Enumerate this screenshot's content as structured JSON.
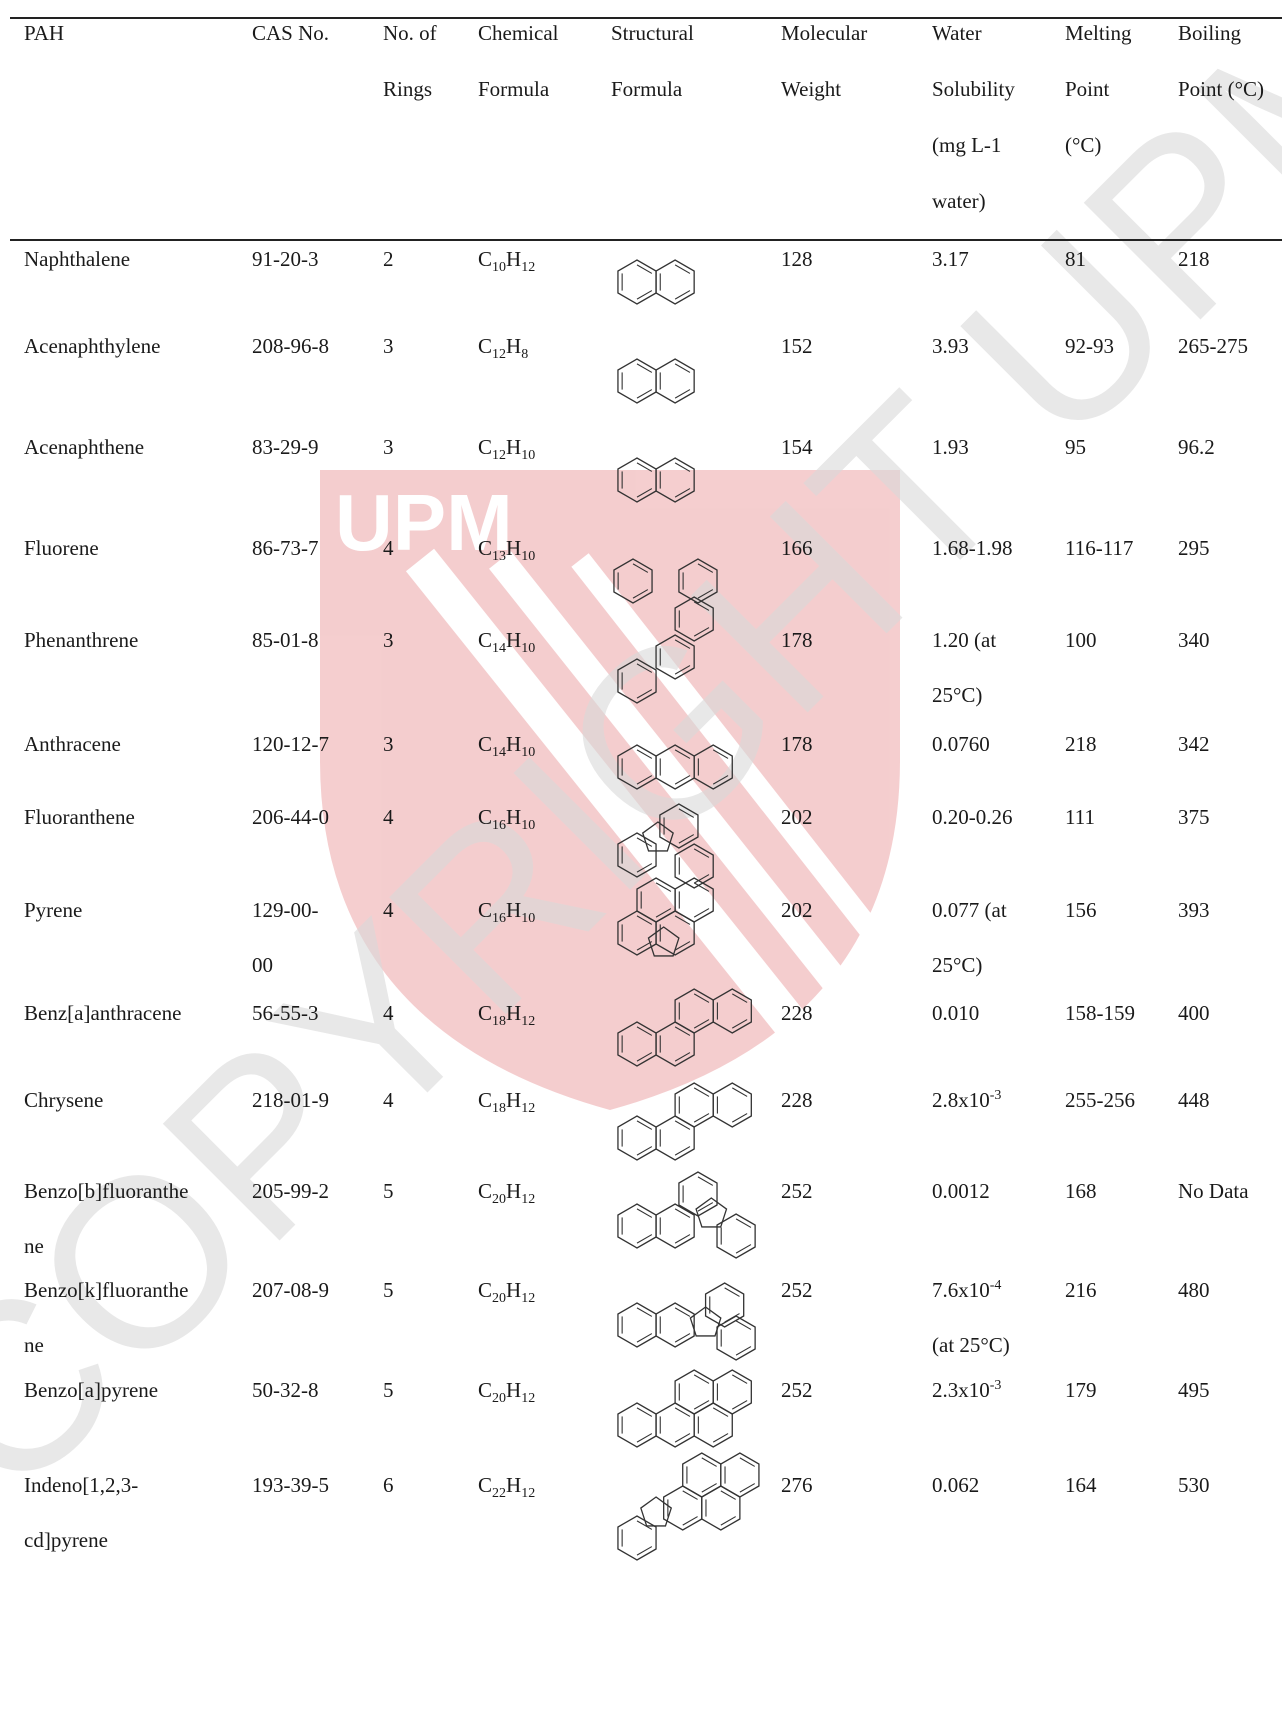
{
  "headers": [
    "PAH",
    "CAS No.",
    "No. of\nRings",
    "Chemical\nFormula",
    "Structural\nFormula",
    "Molecular\nWeight",
    "Water\nSolubility\n(mg L-1\nwater)",
    "Melting\nPoint\n(°C)",
    "Boiling\nPoint (°C)"
  ],
  "rows": [
    {
      "pah": "Naphthalene",
      "cas": "91-20-3",
      "rings": "2",
      "formula": "C10H12",
      "f": [
        [
          "C",
          ""
        ],
        [
          "10",
          "sub"
        ],
        [
          "H",
          ""
        ],
        [
          "12",
          "sub"
        ]
      ],
      "structure": "naphthalene-structure",
      "mw": "128",
      "ws": "3.17",
      "mp": "81",
      "bp": "218"
    },
    {
      "pah": "Acenaphthylene",
      "cas": "208-96-8",
      "rings": "3",
      "formula": "C12H8",
      "f": [
        [
          "C",
          ""
        ],
        [
          "12",
          "sub"
        ],
        [
          "H",
          ""
        ],
        [
          "8",
          "sub"
        ]
      ],
      "structure": "acenaphthylene-structure",
      "mw": "152",
      "ws": "3.93",
      "mp": "92-93",
      "bp": "265-275"
    },
    {
      "pah": "Acenaphthene",
      "cas": "83-29-9",
      "rings": "3",
      "formula": "C12H10",
      "f": [
        [
          "C",
          ""
        ],
        [
          "12",
          "sub"
        ],
        [
          "H",
          ""
        ],
        [
          "10",
          "sub"
        ]
      ],
      "structure": "acenaphthene-structure",
      "mw": "154",
      "ws": "1.93",
      "mp": "95",
      "bp": "96.2"
    },
    {
      "pah": "Fluorene",
      "cas": "86-73-7",
      "rings": "4",
      "formula": "C13H10",
      "f": [
        [
          "C",
          ""
        ],
        [
          "13",
          "sub"
        ],
        [
          "H",
          ""
        ],
        [
          "10",
          "sub"
        ]
      ],
      "structure": "fluorene-structure",
      "mw": "166",
      "ws": "1.68-1.98",
      "mp": "116-117",
      "bp": "295"
    },
    {
      "pah": "Phenanthrene",
      "cas": "85-01-8",
      "rings": "3",
      "formula": "C14H10",
      "f": [
        [
          "C",
          ""
        ],
        [
          "14",
          "sub"
        ],
        [
          "H",
          ""
        ],
        [
          "10",
          "sub"
        ]
      ],
      "structure": "phenanthrene-structure",
      "mw": "178",
      "ws": "1.20 (at\n25°C)",
      "mp": "100",
      "bp": "340"
    },
    {
      "pah": "Anthracene",
      "cas": "120-12-7",
      "rings": "3",
      "formula": "C14H10",
      "f": [
        [
          "C",
          ""
        ],
        [
          "14",
          "sub"
        ],
        [
          "H",
          ""
        ],
        [
          "10",
          "sub"
        ]
      ],
      "structure": "anthracene-structure",
      "mw": "178",
      "ws": "0.0760",
      "mp": "218",
      "bp": "342"
    },
    {
      "pah": "Fluoranthene",
      "cas": "206-44-0",
      "rings": "4",
      "formula": "C16H10",
      "f": [
        [
          "C",
          ""
        ],
        [
          "16",
          "sub"
        ],
        [
          "H",
          ""
        ],
        [
          "10",
          "sub"
        ]
      ],
      "structure": "fluoranthene-structure",
      "mw": "202",
      "ws": "0.20-0.26",
      "mp": "111",
      "bp": "375"
    },
    {
      "pah": "Pyrene",
      "cas": "129-00-\n00",
      "rings": "4",
      "formula": "C16H10",
      "f": [
        [
          "C",
          ""
        ],
        [
          "16",
          "sub"
        ],
        [
          "H",
          ""
        ],
        [
          "10",
          "sub"
        ]
      ],
      "structure": "pyrene-structure",
      "mw": "202",
      "ws": "0.077 (at\n25°C)",
      "mp": "156",
      "bp": "393"
    },
    {
      "pah": "Benz[a]anthracene",
      "cas": "56-55-3",
      "rings": "4",
      "formula": "C18H12",
      "f": [
        [
          "C",
          ""
        ],
        [
          "18",
          "sub"
        ],
        [
          "H",
          ""
        ],
        [
          "12",
          "sub"
        ]
      ],
      "structure": "benz-a-anthracene-structure",
      "mw": "228",
      "ws": "0.010",
      "mp": "158-159",
      "bp": "400"
    },
    {
      "pah": "Chrysene",
      "cas": "218-01-9",
      "rings": "4",
      "formula": "C18H12",
      "f": [
        [
          "C",
          ""
        ],
        [
          "18",
          "sub"
        ],
        [
          "H",
          ""
        ],
        [
          "12",
          "sub"
        ]
      ],
      "structure": "chrysene-structure",
      "mw": "228",
      "ws": "2.8x10-3",
      "wsf": [
        [
          "2.8x10",
          ""
        ],
        [
          "-3",
          "sup"
        ]
      ],
      "mp": "255-256",
      "bp": "448"
    },
    {
      "pah": "Benzo[b]fluoranthe\nne",
      "cas": "205-99-2",
      "rings": "5",
      "formula": "C20H12",
      "f": [
        [
          "C",
          ""
        ],
        [
          "20",
          "sub"
        ],
        [
          "H",
          ""
        ],
        [
          "12",
          "sub"
        ]
      ],
      "structure": "benzo-b-fluoranthene-structure",
      "mw": "252",
      "ws": "0.0012",
      "mp": "168",
      "bp": "No Data"
    },
    {
      "pah": "Benzo[k]fluoranthe\nne",
      "cas": "207-08-9",
      "rings": "5",
      "formula": "C20H12",
      "f": [
        [
          "C",
          ""
        ],
        [
          "20",
          "sub"
        ],
        [
          "H",
          ""
        ],
        [
          "12",
          "sub"
        ]
      ],
      "structure": "benzo-k-fluoranthene-structure",
      "mw": "252",
      "ws": "7.6x10-4\n(at 25°C)",
      "wsf": [
        [
          "7.6x10",
          ""
        ],
        [
          "-4",
          "sup"
        ],
        [
          "\n(at 25°C)",
          ""
        ]
      ],
      "mp": "216",
      "bp": "480"
    },
    {
      "pah": "Benzo[a]pyrene",
      "cas": "50-32-8",
      "rings": "5",
      "formula": "C20H12",
      "f": [
        [
          "C",
          ""
        ],
        [
          "20",
          "sub"
        ],
        [
          "H",
          ""
        ],
        [
          "12",
          "sub"
        ]
      ],
      "structure": "benzo-a-pyrene-structure",
      "mw": "252",
      "ws": "2.3x10-3",
      "wsf": [
        [
          "2.3x10",
          ""
        ],
        [
          "-3",
          "sup"
        ]
      ],
      "mp": "179",
      "bp": "495"
    },
    {
      "pah": "Indeno[1,2,3-\ncd]pyrene",
      "cas": "193-39-5",
      "rings": "6",
      "formula": "C22H12",
      "f": [
        [
          "C",
          ""
        ],
        [
          "22",
          "sub"
        ],
        [
          "H",
          ""
        ],
        [
          "12",
          "sub"
        ]
      ],
      "structure": "indeno-pyrene-structure",
      "mw": "276",
      "ws": "0.062",
      "mp": "164",
      "bp": "530"
    }
  ],
  "watermark": {
    "text": "© COPYRIGHT UPM",
    "logo_text": "UPM",
    "logo_color": "#d21f26",
    "text_color": "#d9d9d9"
  }
}
